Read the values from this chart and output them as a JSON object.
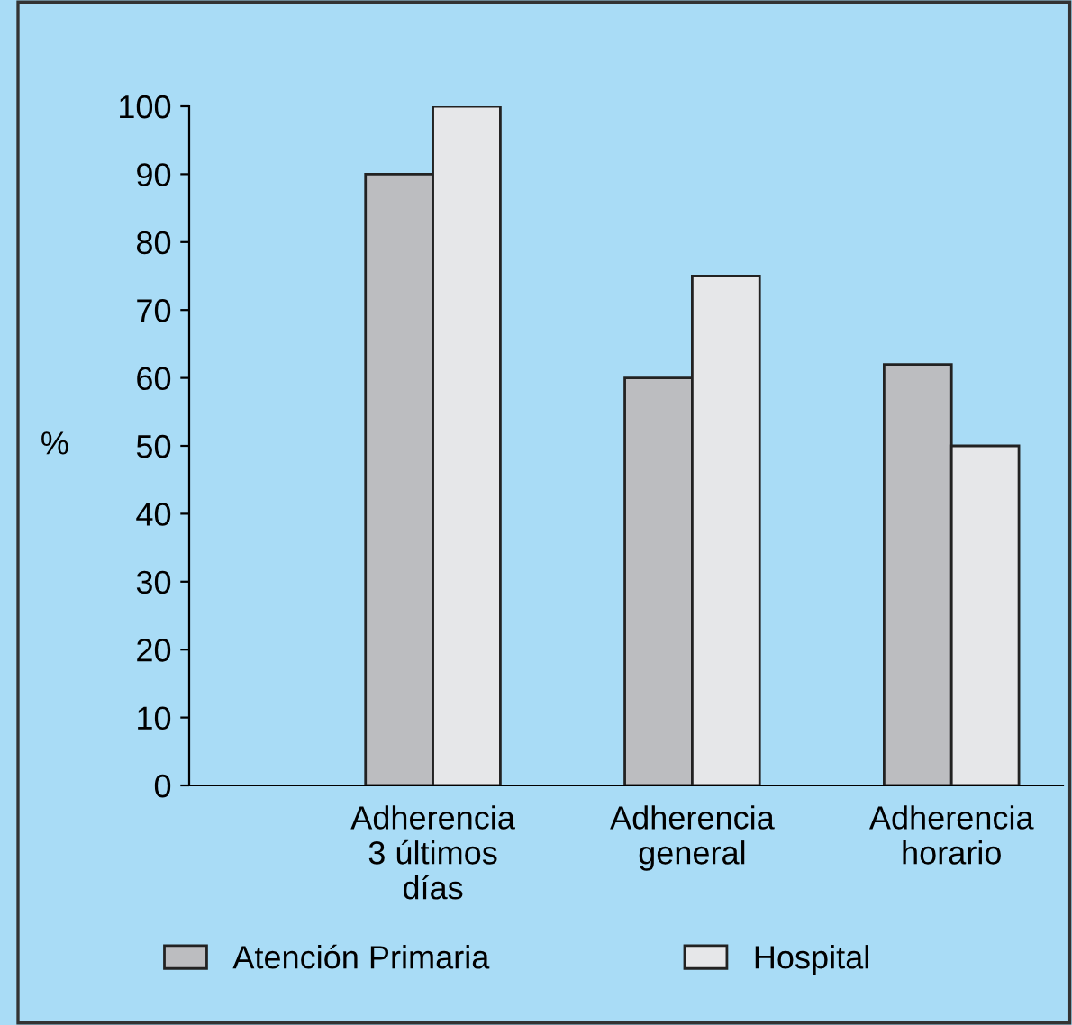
{
  "chart_data": {
    "type": "bar",
    "categories": [
      "Adherencia\n3 últimos\ndías",
      "Adherencia\ngeneral",
      "Adherencia\nhorario"
    ],
    "series": [
      {
        "name": "Atención Primaria",
        "color": "#bcbdc0",
        "values": [
          90,
          60,
          62
        ]
      },
      {
        "name": "Hospital",
        "color": "#e6e7e9",
        "values": [
          100,
          75,
          50
        ]
      }
    ],
    "ylabel": "%",
    "ylim": [
      0,
      100
    ],
    "yticks": [
      0,
      10,
      20,
      30,
      40,
      50,
      60,
      70,
      80,
      90,
      100
    ],
    "grid": false,
    "legend": "bottom"
  }
}
